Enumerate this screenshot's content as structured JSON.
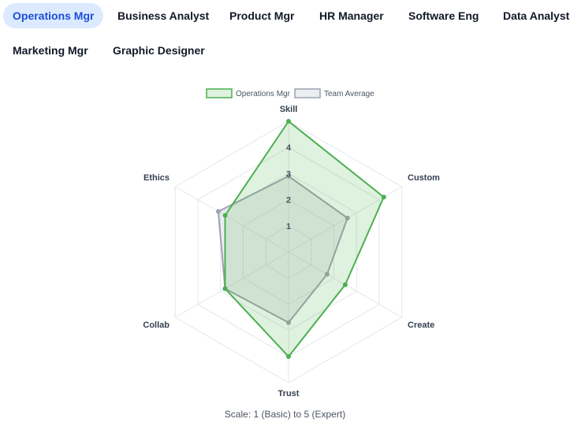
{
  "tabs": [
    {
      "label": "Operations Mgr",
      "active": true
    },
    {
      "label": "Business Analyst",
      "active": false
    },
    {
      "label": "Product Mgr",
      "active": false
    },
    {
      "label": "HR Manager",
      "active": false
    },
    {
      "label": "Software Eng",
      "active": false
    },
    {
      "label": "Data Analyst",
      "active": false
    },
    {
      "label": "Marketing Mgr",
      "active": false
    },
    {
      "label": "Graphic Designer",
      "active": false
    }
  ],
  "caption": "Scale: 1 (Basic) to 5 (Expert)",
  "chart_data": {
    "type": "radar",
    "axes": [
      "Skill",
      "Custom",
      "Create",
      "Trust",
      "Collab",
      "Ethics"
    ],
    "range": [
      0,
      5
    ],
    "ticks": [
      1,
      2,
      3,
      4,
      5
    ],
    "tick_labels_shown": [
      "1",
      "2",
      "3",
      "4"
    ],
    "legend_position": "top",
    "series": [
      {
        "name": "Operations Mgr",
        "values": [
          5,
          4.2,
          2.5,
          4,
          2.8,
          2.8
        ],
        "color": "#4caf50",
        "fill": "rgba(76,175,80,0.18)"
      },
      {
        "name": "Team Average",
        "values": [
          2.9,
          2.6,
          1.7,
          2.7,
          2.8,
          3.1
        ],
        "color": "#9ca3af",
        "fill": "rgba(156,163,175,0.18)"
      }
    ],
    "grid": true
  }
}
